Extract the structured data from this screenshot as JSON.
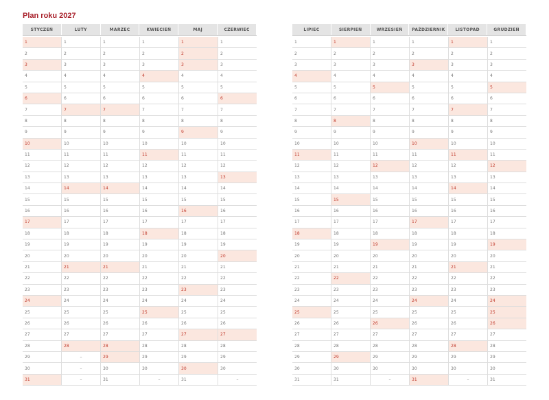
{
  "title": "Plan roku 2027",
  "colors": {
    "accent": "#a8202a",
    "highlight": "#fbe7df"
  },
  "pages": [
    {
      "months": [
        {
          "name": "STYCZEŃ",
          "days": 31,
          "highlighted": [
            1,
            3,
            6,
            10,
            17,
            24,
            31
          ]
        },
        {
          "name": "LUTY",
          "days": 28,
          "highlighted": [
            7,
            14,
            21,
            28
          ]
        },
        {
          "name": "MARZEC",
          "days": 31,
          "highlighted": [
            7,
            14,
            21,
            28,
            29
          ]
        },
        {
          "name": "KWIECIEŃ",
          "days": 30,
          "highlighted": [
            4,
            11,
            18,
            25
          ]
        },
        {
          "name": "MAJ",
          "days": 31,
          "highlighted": [
            1,
            2,
            3,
            9,
            16,
            23,
            27,
            30
          ]
        },
        {
          "name": "CZERWIEC",
          "days": 30,
          "highlighted": [
            6,
            13,
            20,
            27
          ]
        }
      ]
    },
    {
      "months": [
        {
          "name": "LIPIEC",
          "days": 31,
          "highlighted": [
            4,
            11,
            18,
            25
          ]
        },
        {
          "name": "SIERPIEŃ",
          "days": 31,
          "highlighted": [
            1,
            8,
            15,
            22,
            29
          ]
        },
        {
          "name": "WRZESIEŃ",
          "days": 30,
          "highlighted": [
            5,
            12,
            19,
            26
          ]
        },
        {
          "name": "PAŹDZIERNIK",
          "days": 31,
          "highlighted": [
            3,
            10,
            17,
            24,
            31
          ]
        },
        {
          "name": "LISTOPAD",
          "days": 30,
          "highlighted": [
            1,
            7,
            11,
            14,
            21,
            28
          ]
        },
        {
          "name": "GRUDZIEŃ",
          "days": 31,
          "highlighted": [
            5,
            12,
            19,
            24,
            25,
            26
          ]
        }
      ]
    }
  ],
  "empty_mark": "–"
}
